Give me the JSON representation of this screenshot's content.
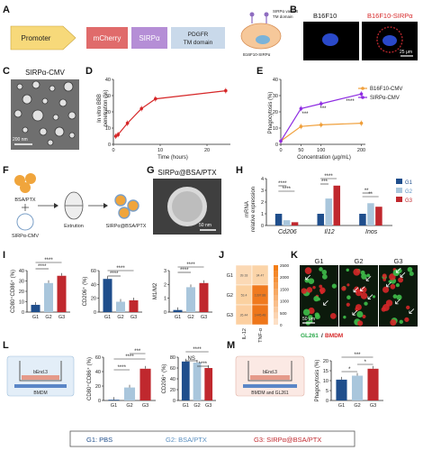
{
  "panel_letters": [
    "A",
    "B",
    "C",
    "D",
    "E",
    "F",
    "G",
    "H",
    "I",
    "J",
    "K",
    "L",
    "M"
  ],
  "A": {
    "boxes": [
      "Promoter",
      "mCherry",
      "SIRPα",
      "PDGFR",
      "TM domain"
    ],
    "cell_labels": [
      "SIRPα variant",
      "TM domain"
    ],
    "cell_name": "B16F10-SIRPα"
  },
  "B": {
    "left_label": "B16F10",
    "right_label": "B16F10-SIRPα",
    "scale": "25 μm"
  },
  "C": {
    "title": "SIRPα-CMV",
    "scale": "200 nm"
  },
  "D": {
    "xlabel": "Time (hours)",
    "ylabel_lines": [
      "In vitro BBB",
      "penetration (%)"
    ]
  },
  "E": {
    "xlabel": "Concentration (μg/mL)",
    "ylabel": "Phagocytosis (%)",
    "legend": [
      "B16F10-CMV",
      "SIRPα-CMV"
    ],
    "sig": [
      "***",
      "***",
      "****"
    ]
  },
  "F": {
    "labels": [
      "BSA/PTX",
      "Extrution",
      "SIRPα@BSA/PTX",
      "SIRPα-CMV"
    ]
  },
  "G": {
    "title": "SIRPα@BSA/PTX",
    "scale": "50 nm"
  },
  "H": {
    "ylabel_lines": [
      "mRNA",
      "relative expression"
    ],
    "genes": [
      "Cd206",
      "Il12",
      "Inos"
    ],
    "legend": [
      "G1",
      "G2",
      "G3"
    ]
  },
  "I": {
    "ylabels": [
      "CD80⁺CD86⁺ (%)",
      "CD206⁺ (%)",
      "M1/M2"
    ],
    "groups": [
      "G1",
      "G2",
      "G3"
    ]
  },
  "J": {
    "rows": [
      "G1",
      "G2",
      "G3"
    ],
    "cols": [
      "IL-12",
      "TNF-α"
    ],
    "cells": [
      [
        "39.18",
        "34.47"
      ],
      [
        "53.4",
        "1397.88"
      ],
      [
        "26.44",
        "1445.48"
      ]
    ],
    "scale": [
      "2500",
      "2000",
      "1500",
      "1000",
      "500",
      "0"
    ]
  },
  "K": {
    "cols": [
      "G1",
      "G2",
      "G3"
    ],
    "legend_a": "GL261",
    "legend_sep": "/",
    "legend_b": "BMDM",
    "scale": "50 μm"
  },
  "L": {
    "box_top": "bEnd.3",
    "box_bottom": "BMDM",
    "ylabels": [
      "CD80⁺CD86⁺ (%)",
      "CD206⁺ (%)"
    ],
    "groups": [
      "G1",
      "G2",
      "G3"
    ],
    "sig_ns": "NS"
  },
  "M": {
    "box_top": "bEnd.3",
    "box_bottom": "BMDM and GL261",
    "ylabel": "Phagocytosis (%)",
    "groups": [
      "G1",
      "G2",
      "G3"
    ]
  },
  "footer": {
    "g1": "G1: PBS",
    "g2": "G2: BSA/PTX",
    "g3": "G3: SIRPα@BSA/PTX"
  },
  "colors": {
    "g1": "#1f4e8c",
    "g2": "#a9c6dc",
    "g3": "#c0282e",
    "red": "#d62728",
    "purple": "#8e2de2",
    "orange": "#f0a03c"
  },
  "chart_data": [
    {
      "panel": "D",
      "type": "line",
      "x": [
        0.5,
        1,
        3,
        6,
        9,
        24
      ],
      "y": [
        5,
        6,
        13,
        22,
        28,
        33
      ],
      "xlim": [
        0,
        25
      ],
      "ylim": [
        0,
        40
      ]
    },
    {
      "panel": "E",
      "type": "line",
      "x": [
        0,
        50,
        100,
        200
      ],
      "series": [
        {
          "name": "B16F10-CMV",
          "values": [
            2,
            11,
            12,
            13
          ]
        },
        {
          "name": "SIRPα-CMV",
          "values": [
            2,
            22,
            25,
            31
          ]
        }
      ],
      "xlim": [
        0,
        210
      ],
      "ylim": [
        0,
        40
      ]
    },
    {
      "panel": "H",
      "type": "bar",
      "categories": [
        "Cd206",
        "Il12",
        "Inos"
      ],
      "series": [
        {
          "name": "G1",
          "values": [
            1,
            1,
            1
          ]
        },
        {
          "name": "G2",
          "values": [
            0.45,
            2.3,
            1.9
          ]
        },
        {
          "name": "G3",
          "values": [
            0.28,
            3.4,
            1.6
          ]
        }
      ],
      "ylim": [
        0,
        4
      ]
    },
    {
      "panel": "I-a",
      "type": "bar",
      "categories": [
        "G1",
        "G2",
        "G3"
      ],
      "values": [
        7,
        28,
        35
      ],
      "ylim": [
        0,
        40
      ]
    },
    {
      "panel": "I-b",
      "type": "bar",
      "categories": [
        "G1",
        "G2",
        "G3"
      ],
      "values": [
        48,
        15,
        17
      ],
      "ylim": [
        0,
        60
      ]
    },
    {
      "panel": "I-c",
      "type": "bar",
      "categories": [
        "G1",
        "G2",
        "G3"
      ],
      "values": [
        0.15,
        1.8,
        2.1
      ],
      "ylim": [
        0,
        3
      ]
    },
    {
      "panel": "L-a",
      "type": "bar",
      "categories": [
        "G1",
        "G2",
        "G3"
      ],
      "values": [
        1,
        18,
        44
      ],
      "ylim": [
        0,
        60
      ]
    },
    {
      "panel": "L-b",
      "type": "bar",
      "categories": [
        "G1",
        "G2",
        "G3"
      ],
      "values": [
        72,
        70,
        60
      ],
      "ylim": [
        0,
        80
      ]
    },
    {
      "panel": "M",
      "type": "bar",
      "categories": [
        "G1",
        "G2",
        "G3"
      ],
      "values": [
        10.5,
        12.5,
        16
      ],
      "ylim": [
        0,
        20
      ]
    }
  ]
}
